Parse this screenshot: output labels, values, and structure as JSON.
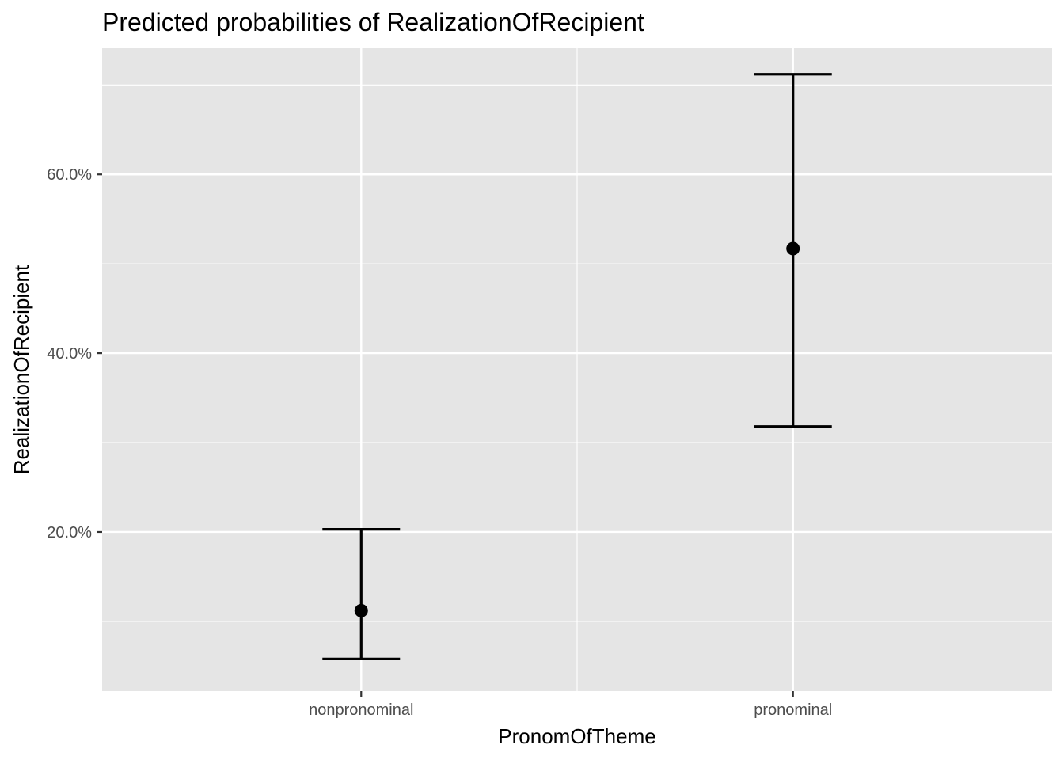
{
  "chart_data": {
    "type": "errorbar",
    "title": "Predicted probabilities of RealizationOfRecipient",
    "xlabel": "PronomOfTheme",
    "ylabel": "RealizationOfRecipient",
    "categories": [
      "nonpronominal",
      "pronominal"
    ],
    "series": [
      {
        "predicted": [
          0.112,
          0.517
        ],
        "conf_low": [
          0.058,
          0.318
        ],
        "conf_high": [
          0.203,
          0.712
        ]
      }
    ],
    "ylim": [
      0.022,
      0.741
    ],
    "y_ticks": [
      0.2,
      0.4,
      0.6
    ],
    "y_tick_labels": [
      "20.0%",
      "40.0%",
      "60.0%"
    ],
    "y_minor_ticks": [
      0.1,
      0.3,
      0.5,
      0.7
    ],
    "grid": true,
    "legend": "none",
    "colors": {
      "panel_background": "#e5e5e5",
      "grid": "#ffffff",
      "marks": "#000000",
      "tick_label": "#4d4d4d"
    }
  }
}
